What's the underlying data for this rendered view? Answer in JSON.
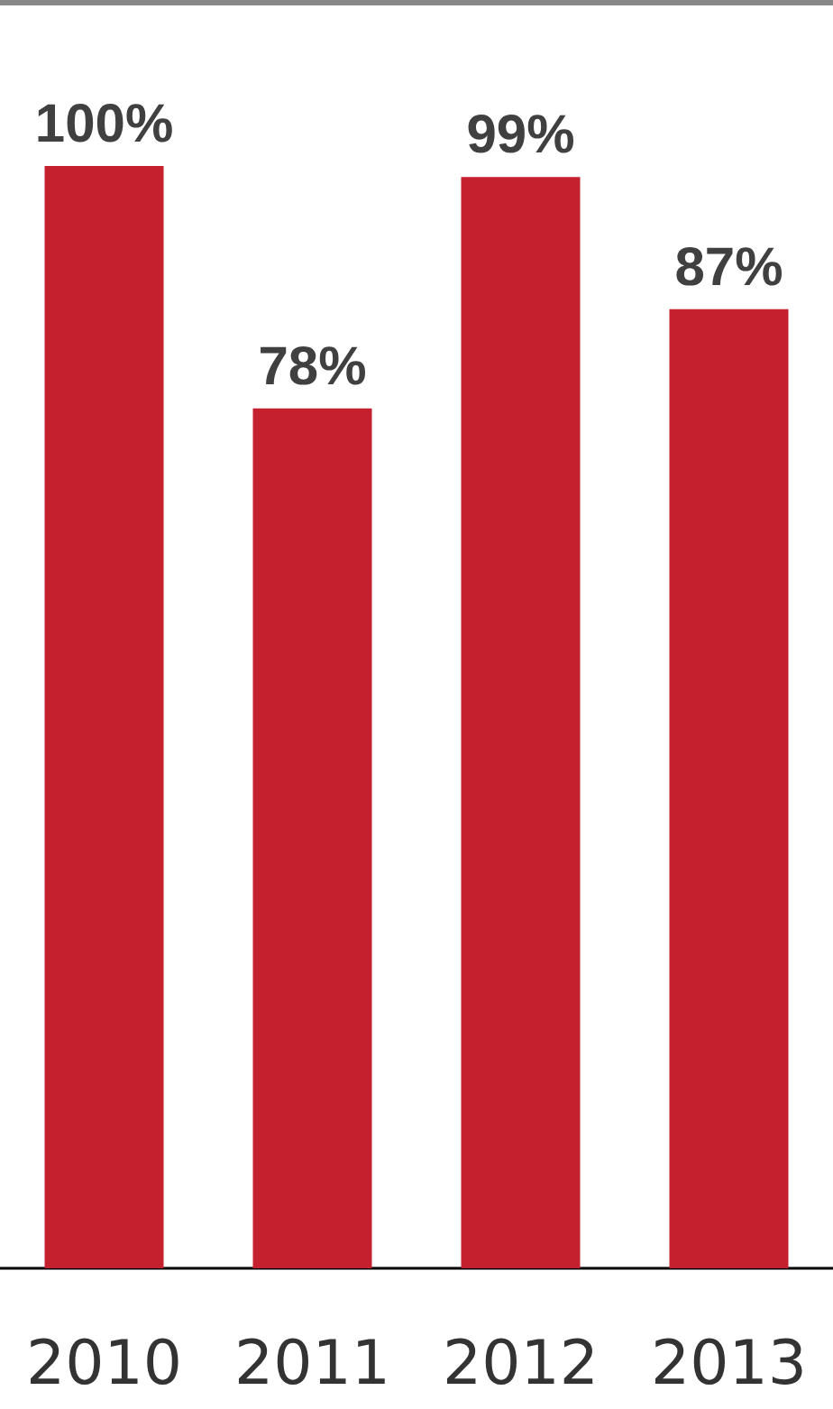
{
  "chart_data": {
    "type": "bar",
    "categories": [
      "2010",
      "2011",
      "2012",
      "2013"
    ],
    "values": [
      100,
      78,
      99,
      87
    ],
    "value_labels": [
      "100%",
      "78%",
      "99%",
      "87%"
    ],
    "color": "#c4202e"
  }
}
